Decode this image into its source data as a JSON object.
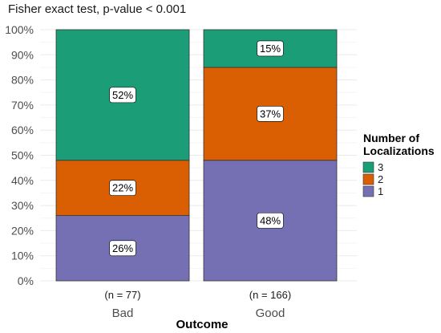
{
  "chart_data": {
    "type": "bar",
    "stacked": true,
    "percent": true,
    "title": "Fisher exact test, p-value < 0.001",
    "xlabel": "Outcome",
    "ylabel": "",
    "ylim": [
      0,
      100
    ],
    "yticks": [
      0,
      10,
      20,
      30,
      40,
      50,
      60,
      70,
      80,
      90,
      100
    ],
    "ytick_labels": [
      "0%",
      "10%",
      "20%",
      "30%",
      "40%",
      "50%",
      "60%",
      "70%",
      "80%",
      "90%",
      "100%"
    ],
    "grid": true,
    "categories": [
      "Bad",
      "Good"
    ],
    "n_labels": [
      "(n = 77)",
      "(n = 166)"
    ],
    "legend": {
      "title_lines": [
        "Number of",
        "Localizations"
      ],
      "placement": "right",
      "entries": [
        "3",
        "2",
        "1"
      ]
    },
    "series": [
      {
        "name": "1",
        "values": [
          26,
          48
        ],
        "labels": [
          "26%",
          "48%"
        ],
        "color": "#7570b3"
      },
      {
        "name": "2",
        "values": [
          22,
          37
        ],
        "labels": [
          "22%",
          "37%"
        ],
        "color": "#d95f02"
      },
      {
        "name": "3",
        "values": [
          52,
          15
        ],
        "labels": [
          "52%",
          "15%"
        ],
        "color": "#1b9e77"
      }
    ]
  }
}
